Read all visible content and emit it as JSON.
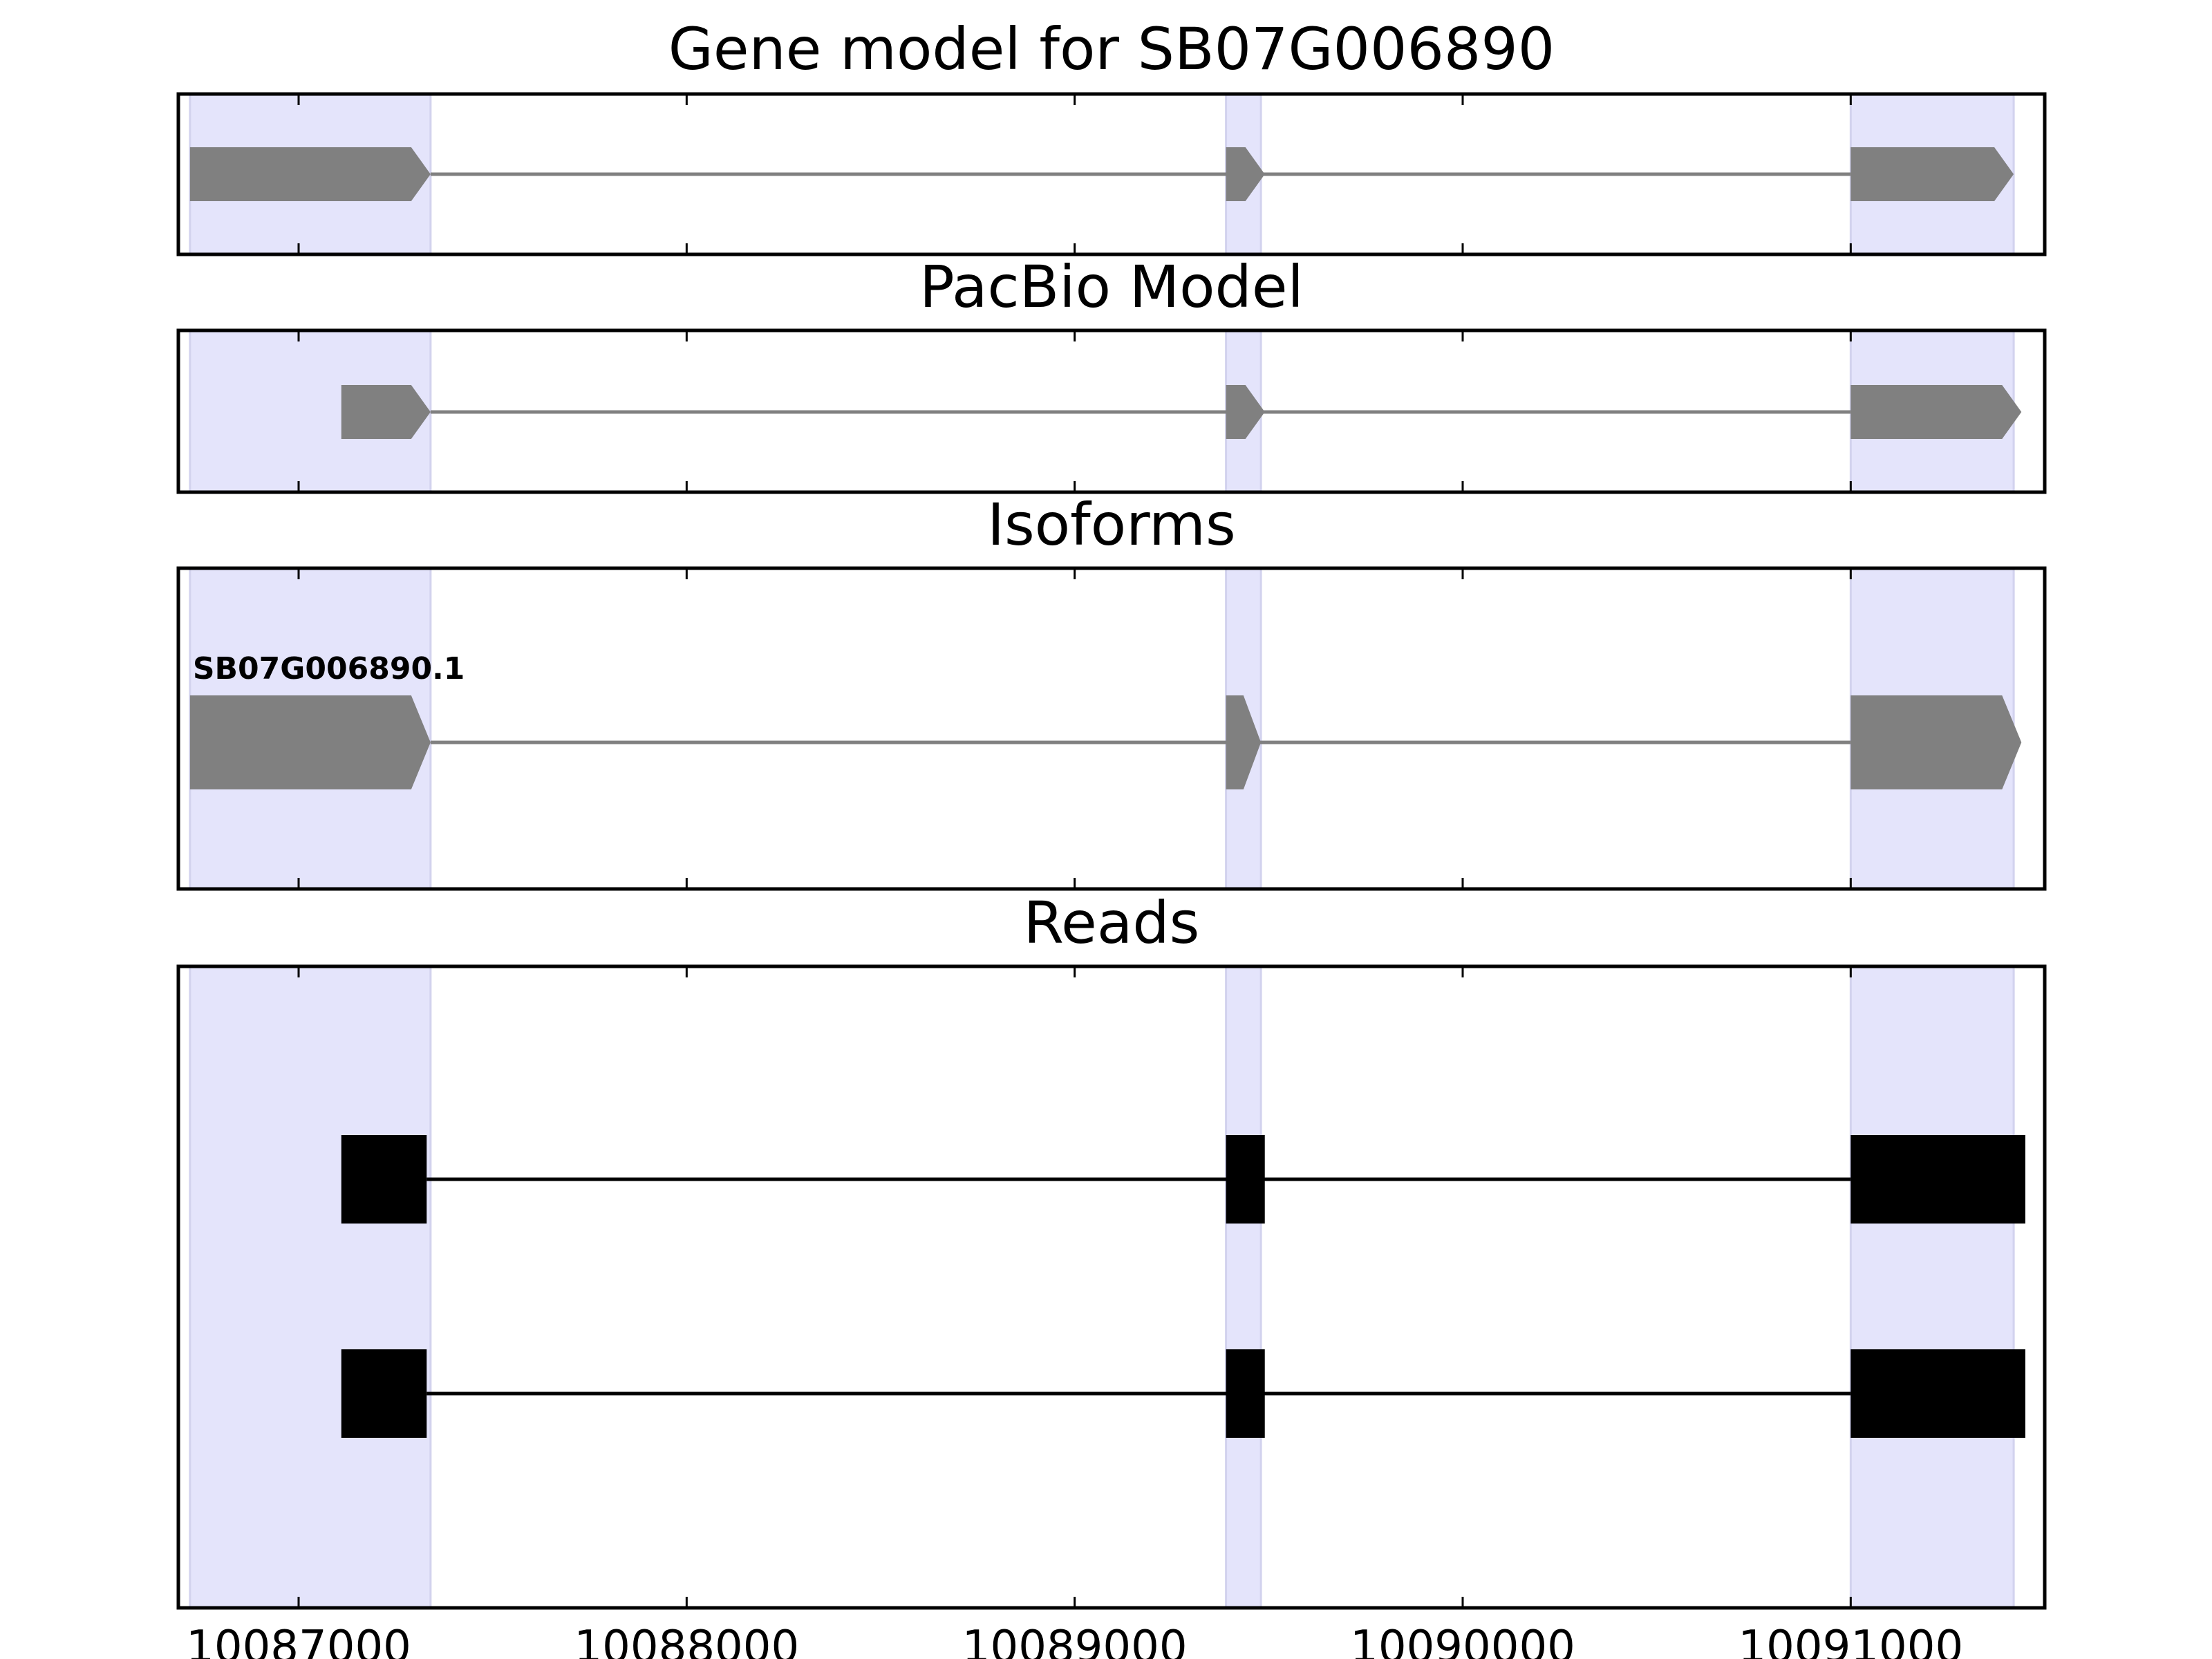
{
  "chart_data": {
    "type": "gene-structure",
    "xlim": [
      10086690,
      10091500
    ],
    "x_ticks": [
      10087000,
      10088000,
      10089000,
      10090000,
      10091000
    ],
    "x_tick_labels": [
      "10087000",
      "10088000",
      "10089000",
      "10090000",
      "10091000"
    ],
    "highlight_color": "#e4e4fb",
    "highlight_regions": [
      [
        10086720,
        10087340
      ],
      [
        10089390,
        10089480
      ],
      [
        10091000,
        10091420
      ]
    ],
    "panels": [
      {
        "title": "Gene model for SB07G006890",
        "feature_color": "#808080",
        "style": "arrow",
        "tracks": [
          {
            "label": "",
            "exons": [
              [
                10086720,
                10087340
              ],
              [
                10089390,
                10089490
              ],
              [
                10091000,
                10091420
              ]
            ]
          }
        ]
      },
      {
        "title": "PacBio Model",
        "feature_color": "#808080",
        "style": "arrow",
        "tracks": [
          {
            "label": "",
            "exons": [
              [
                10087110,
                10087340
              ],
              [
                10089390,
                10089490
              ],
              [
                10091000,
                10091440
              ]
            ]
          }
        ]
      },
      {
        "title": "Isoforms",
        "feature_color": "#808080",
        "style": "arrow",
        "tracks": [
          {
            "label": "SB07G006890.1",
            "exons": [
              [
                10086720,
                10087340
              ],
              [
                10089390,
                10089480
              ],
              [
                10091000,
                10091440
              ]
            ]
          }
        ]
      },
      {
        "title": "Reads",
        "feature_color": "#000000",
        "style": "box",
        "tracks": [
          {
            "label": "",
            "exons": [
              [
                10087110,
                10087330
              ],
              [
                10089390,
                10089490
              ],
              [
                10091000,
                10091450
              ]
            ]
          },
          {
            "label": "",
            "exons": [
              [
                10087110,
                10087330
              ],
              [
                10089390,
                10089490
              ],
              [
                10091000,
                10091450
              ]
            ]
          }
        ]
      }
    ]
  }
}
